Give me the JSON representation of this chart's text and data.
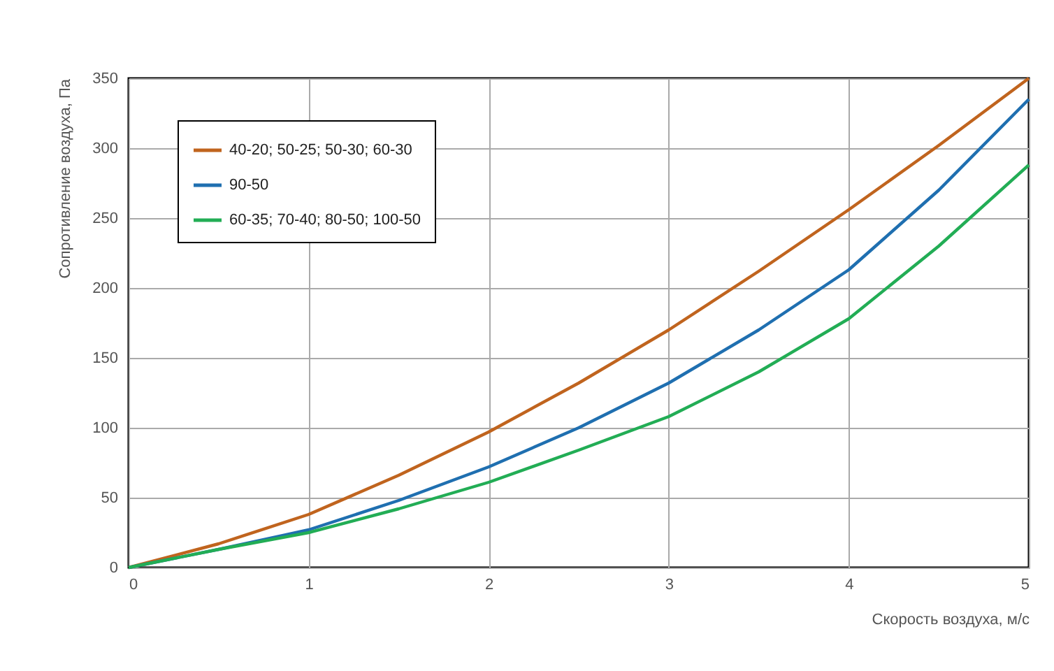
{
  "chart_data": {
    "type": "line",
    "xlabel": "Скорость воздуха, м/с",
    "ylabel": "Сопротивление воздуха, Па",
    "x": [
      0,
      0.5,
      1,
      1.5,
      2,
      2.5,
      3,
      3.5,
      4,
      4.5,
      5
    ],
    "series": [
      {
        "name": "40-20; 50-25; 50-30; 60-30",
        "color": "#c0641e",
        "values": [
          0,
          17,
          38,
          66,
          97,
          132,
          170,
          212,
          256,
          302,
          350
        ]
      },
      {
        "name": "90-50",
        "color": "#1f6fb0",
        "values": [
          0,
          13,
          27,
          48,
          72,
          100,
          132,
          170,
          213,
          270,
          335
        ]
      },
      {
        "name": "60-35; 70-40; 80-50; 100-50",
        "color": "#22ad55",
        "values": [
          0,
          13,
          25,
          42,
          61,
          84,
          108,
          140,
          178,
          230,
          288
        ]
      }
    ],
    "xlim": [
      0,
      5
    ],
    "xticks": [
      0,
      1,
      2,
      3,
      4,
      5
    ],
    "ylim": [
      0,
      350
    ],
    "yticks": [
      0,
      50,
      100,
      150,
      200,
      250,
      300,
      350
    ],
    "grid": true,
    "legend": "top left",
    "marker": "none",
    "line_style": "solid"
  }
}
